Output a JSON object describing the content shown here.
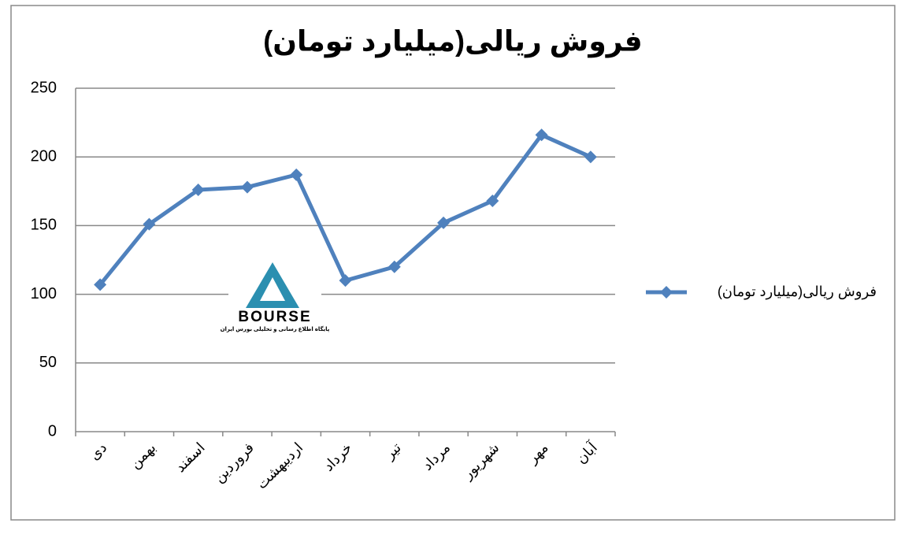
{
  "chart_data": {
    "type": "line",
    "title": "فروش ریالی(میلیارد تومان)",
    "categories": [
      "دی",
      "بهمن",
      "اسفند",
      "فروردین",
      "اردیبهشت",
      "خرداد",
      "تیر",
      "مرداد",
      "شهریور",
      "مهر",
      "آبان"
    ],
    "series": [
      {
        "name": "فروش ریالی(میلیارد تومان)",
        "color": "#4f81bd",
        "values": [
          107,
          151,
          176,
          178,
          187,
          110,
          120,
          152,
          168,
          216,
          200
        ]
      }
    ],
    "ylim": [
      0,
      250
    ],
    "yticks": [
      0,
      50,
      100,
      150,
      200,
      250
    ],
    "grid": true,
    "legend": "right",
    "annotations": [
      "BOURSE",
      "پایگاه اطلاع رسانی و تحلیلی بورس ایران"
    ]
  }
}
